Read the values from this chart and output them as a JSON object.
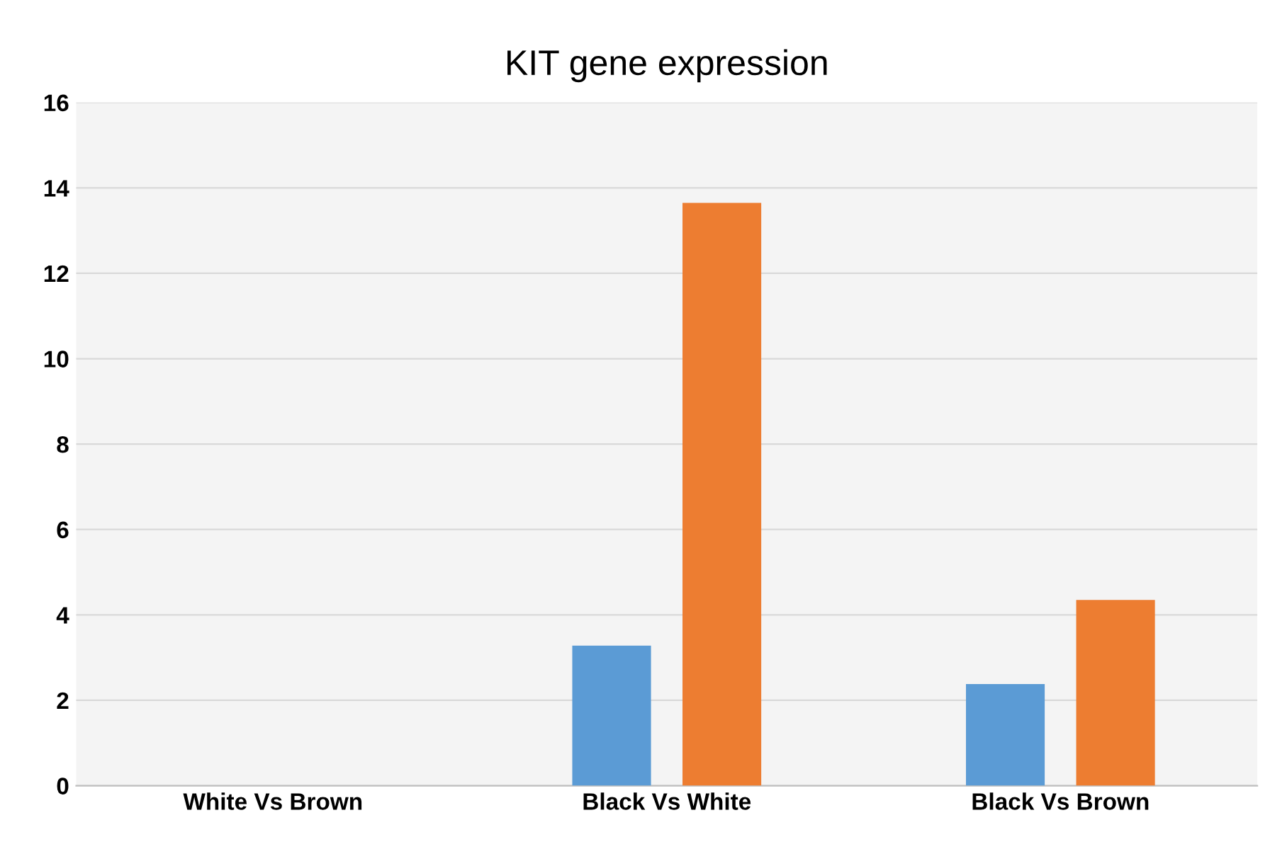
{
  "chart_data": {
    "type": "bar",
    "title": "KIT gene expression",
    "categories": [
      "White Vs Brown",
      "Black Vs White",
      "Black Vs Brown"
    ],
    "series": [
      {
        "color": "#5b9bd5",
        "values": [
          null,
          3.28,
          2.38
        ]
      },
      {
        "color": "#ed7d31",
        "values": [
          null,
          13.65,
          4.35
        ]
      }
    ],
    "ylim": [
      0,
      16
    ],
    "yticks": [
      0,
      2,
      4,
      6,
      8,
      10,
      12,
      14,
      16
    ],
    "grid": "y"
  }
}
